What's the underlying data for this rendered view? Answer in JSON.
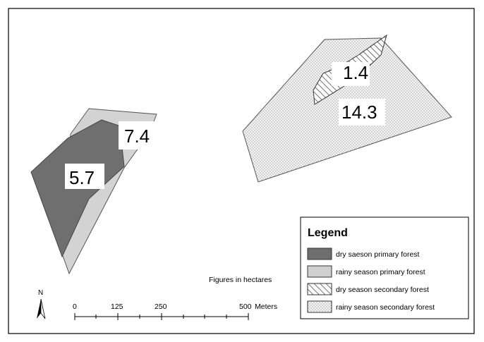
{
  "area_labels": {
    "dry_primary": "5.7",
    "rainy_primary": "7.4",
    "dry_secondary": "1.4",
    "rainy_secondary": "14.3"
  },
  "legend": {
    "title": "Legend",
    "items": [
      {
        "label": "dry saeson primary forest",
        "fill": "dark-gray",
        "color": "#6e6e6e"
      },
      {
        "label": "rainy season primary forest",
        "fill": "light-gray",
        "color": "#d0d0d0"
      },
      {
        "label": "dry season secondary forest",
        "fill": "diagonal-hatch",
        "color": "#444444"
      },
      {
        "label": "rainy season secondary forest",
        "fill": "dot-stipple",
        "color": "#f2f2f2"
      }
    ]
  },
  "note": "Figures in hectares",
  "north_arrow": {
    "letter": "N",
    "icon": "north-arrow-icon"
  },
  "scale_bar": {
    "ticks": [
      "0",
      "125",
      "250",
      "500"
    ],
    "unit": "Meters"
  }
}
